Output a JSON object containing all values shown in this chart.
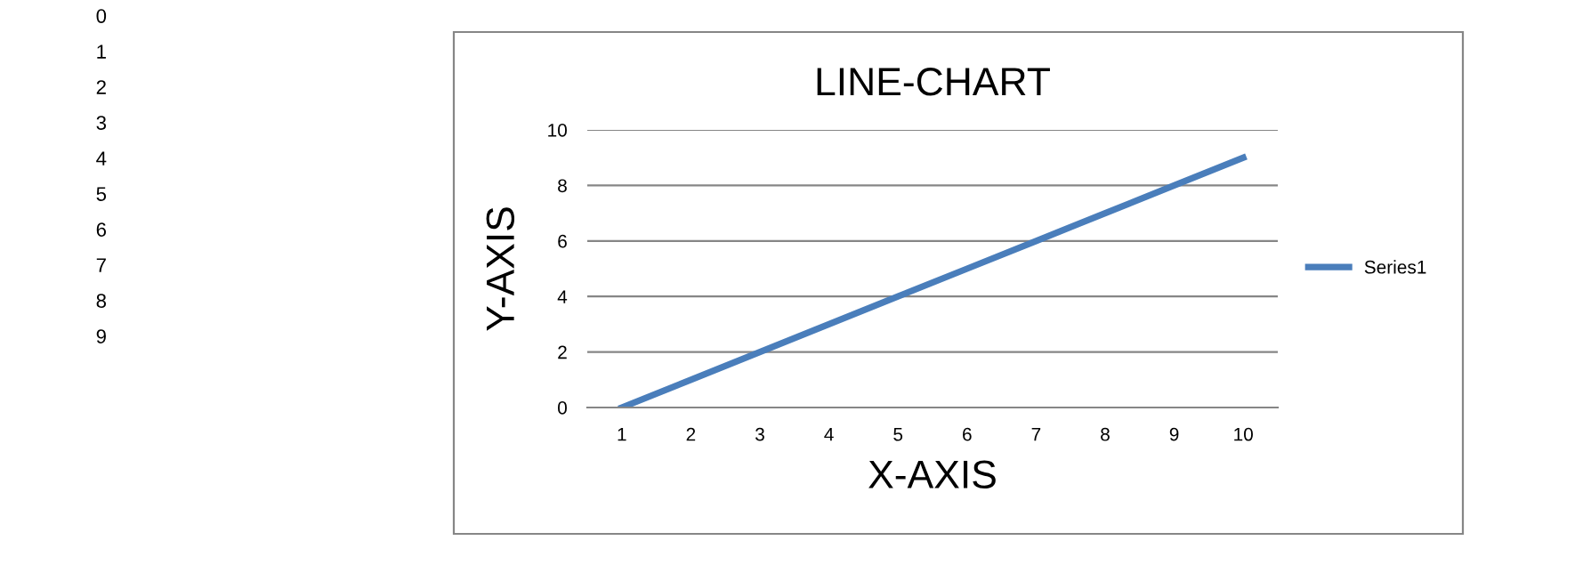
{
  "chart_data": {
    "type": "line",
    "title": "LINE-CHART",
    "xlabel": "X-AXIS",
    "ylabel": "Y-AXIS",
    "categories": [
      "1",
      "2",
      "3",
      "4",
      "5",
      "6",
      "7",
      "8",
      "9",
      "10"
    ],
    "series": [
      {
        "name": "Series1",
        "color": "#4a7ebb",
        "values": [
          0,
          1,
          2,
          3,
          4,
          5,
          6,
          7,
          8,
          9
        ]
      }
    ],
    "ylim": [
      0,
      10
    ],
    "yticks": [
      0,
      2,
      4,
      6,
      8,
      10
    ],
    "grid": "y",
    "legend": "right",
    "marker": "none",
    "line_style": "solid",
    "annotations": [
      "0",
      "1",
      "2",
      "3",
      "4",
      "5",
      "6",
      "7",
      "8",
      "9"
    ]
  }
}
